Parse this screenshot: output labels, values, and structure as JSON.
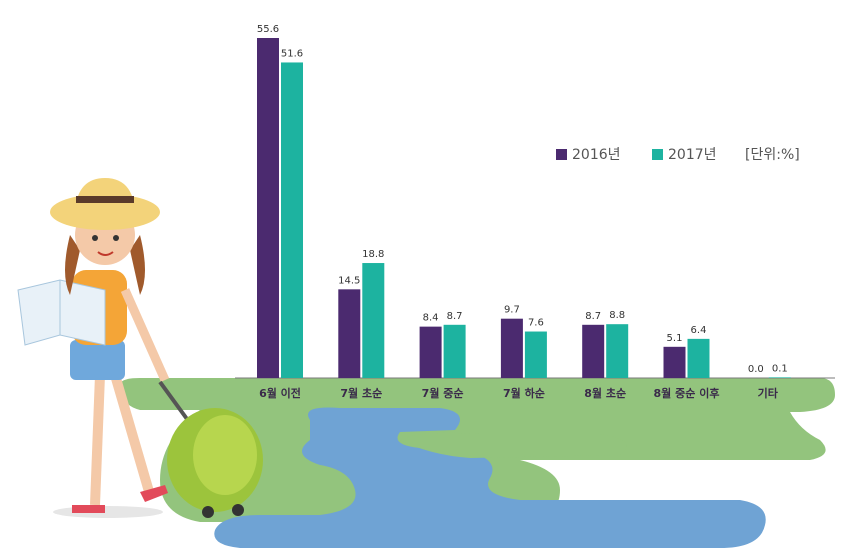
{
  "chart_data": {
    "type": "bar",
    "unit": "[단위:%]",
    "categories": [
      "6월 이전",
      "7월 초순",
      "7월 중순",
      "7월 하순",
      "8월 초순",
      "8월 중순 이후",
      "기타"
    ],
    "series": [
      {
        "name": "2016년",
        "color": "#4b2a6f",
        "values": [
          55.6,
          14.5,
          8.4,
          9.7,
          8.7,
          5.1,
          0.0
        ],
        "value_labels": [
          "55.6",
          "14.5",
          "8.4",
          "9.7",
          "8.7",
          "5.1",
          "0.0"
        ]
      },
      {
        "name": "2017년",
        "color": "#1db3a0",
        "values": [
          51.6,
          18.8,
          8.7,
          7.6,
          8.8,
          6.4,
          0.1
        ],
        "value_labels": [
          "51.6",
          "18.8",
          "8.7",
          "7.6",
          "8.8",
          "6.4",
          "0.1"
        ]
      }
    ]
  }
}
